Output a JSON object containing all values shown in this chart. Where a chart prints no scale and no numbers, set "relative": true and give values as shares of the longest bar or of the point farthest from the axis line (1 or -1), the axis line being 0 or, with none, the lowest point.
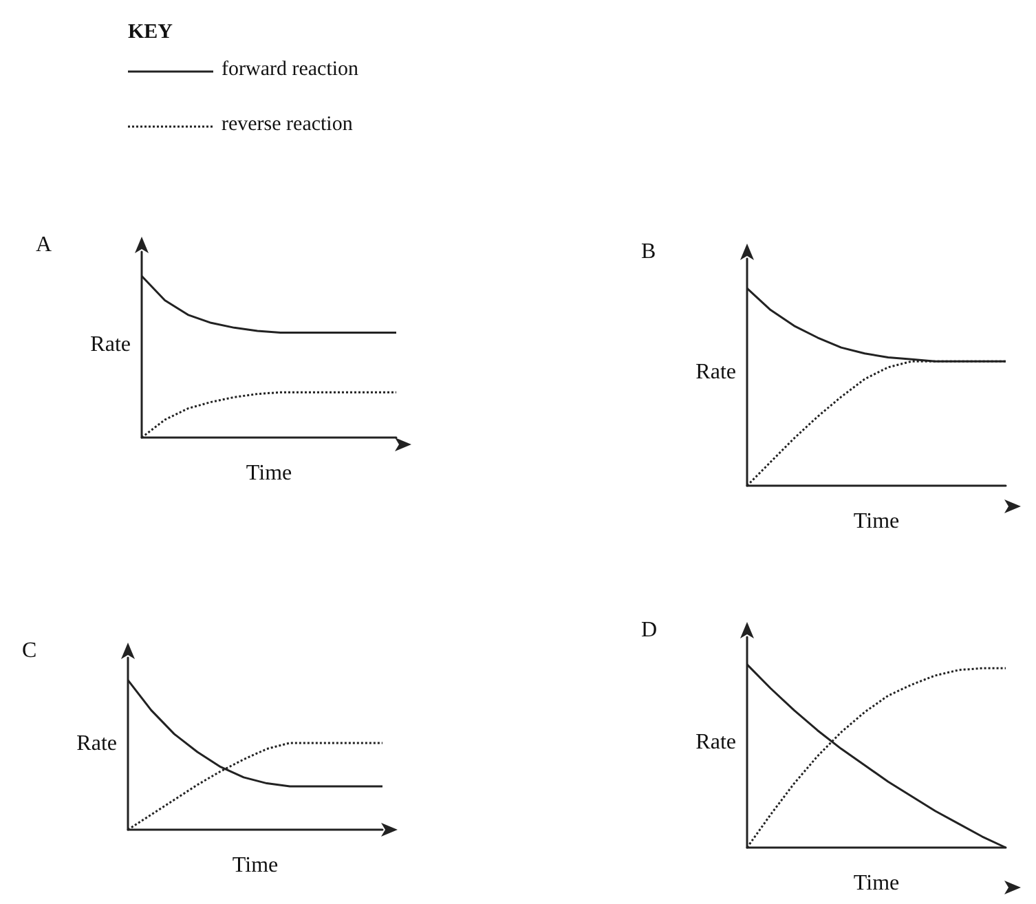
{
  "chart_data": [
    {
      "type": "line",
      "title": "A",
      "xlabel": "Time",
      "ylabel": "Rate",
      "relative": true,
      "legend": "top left",
      "legend_title": "KEY",
      "marker": "none",
      "grid": false,
      "categories": [
        null,
        null,
        null,
        null,
        null,
        null,
        null,
        null,
        null,
        null,
        null,
        null
      ],
      "series": [
        {
          "name": "forward reaction",
          "color": "#222222",
          "line_style": "solid",
          "values": [
            1,
            0.85,
            0.76,
            0.71,
            0.68,
            0.66,
            0.65,
            0.65,
            0.65,
            0.65,
            0.65,
            0.65
          ]
        },
        {
          "name": "reverse reaction",
          "color": "#222222",
          "line_style": "dotted",
          "values": [
            0,
            0.11,
            0.18,
            0.22,
            0.25,
            0.27,
            0.28,
            0.28,
            0.28,
            0.28,
            0.28,
            0.28
          ]
        }
      ]
    },
    {
      "type": "line",
      "title": "B",
      "xlabel": "Time",
      "ylabel": "Rate",
      "relative": true,
      "marker": "none",
      "grid": false,
      "categories": [
        null,
        null,
        null,
        null,
        null,
        null,
        null,
        null,
        null,
        null,
        null,
        null
      ],
      "series": [
        {
          "color": "#222222",
          "line_style": "solid",
          "values": [
            1,
            0.89,
            0.81,
            0.75,
            0.7,
            0.67,
            0.65,
            0.64,
            0.63,
            0.63,
            0.63,
            0.63
          ]
        },
        {
          "color": "#222222",
          "line_style": "dotted",
          "values": [
            0,
            0.12,
            0.24,
            0.35,
            0.45,
            0.54,
            0.6,
            0.63,
            0.63,
            0.63,
            0.63,
            0.63
          ]
        }
      ]
    },
    {
      "type": "line",
      "title": "C",
      "xlabel": "Time",
      "ylabel": "Rate",
      "relative": true,
      "marker": "none",
      "grid": false,
      "categories": [
        null,
        null,
        null,
        null,
        null,
        null,
        null,
        null,
        null,
        null,
        null,
        null
      ],
      "series": [
        {
          "color": "#222222",
          "line_style": "solid",
          "values": [
            1,
            0.8,
            0.64,
            0.52,
            0.42,
            0.35,
            0.31,
            0.29,
            0.29,
            0.29,
            0.29,
            0.29
          ]
        },
        {
          "color": "#222222",
          "line_style": "dotted",
          "values": [
            0,
            0.1,
            0.2,
            0.3,
            0.39,
            0.47,
            0.54,
            0.58,
            0.58,
            0.58,
            0.58,
            0.58
          ]
        }
      ]
    },
    {
      "type": "line",
      "title": "D",
      "xlabel": "Time",
      "ylabel": "Rate",
      "relative": true,
      "marker": "none",
      "grid": false,
      "categories": [
        null,
        null,
        null,
        null,
        null,
        null,
        null,
        null,
        null,
        null,
        null,
        null
      ],
      "series": [
        {
          "color": "#222222",
          "line_style": "solid",
          "values": [
            1,
            0.87,
            0.75,
            0.64,
            0.54,
            0.45,
            0.36,
            0.28,
            0.2,
            0.13,
            0.06,
            0
          ]
        },
        {
          "color": "#222222",
          "line_style": "dotted",
          "values": [
            0,
            0.18,
            0.35,
            0.5,
            0.63,
            0.74,
            0.83,
            0.89,
            0.94,
            0.97,
            0.98,
            0.98
          ]
        }
      ]
    }
  ]
}
